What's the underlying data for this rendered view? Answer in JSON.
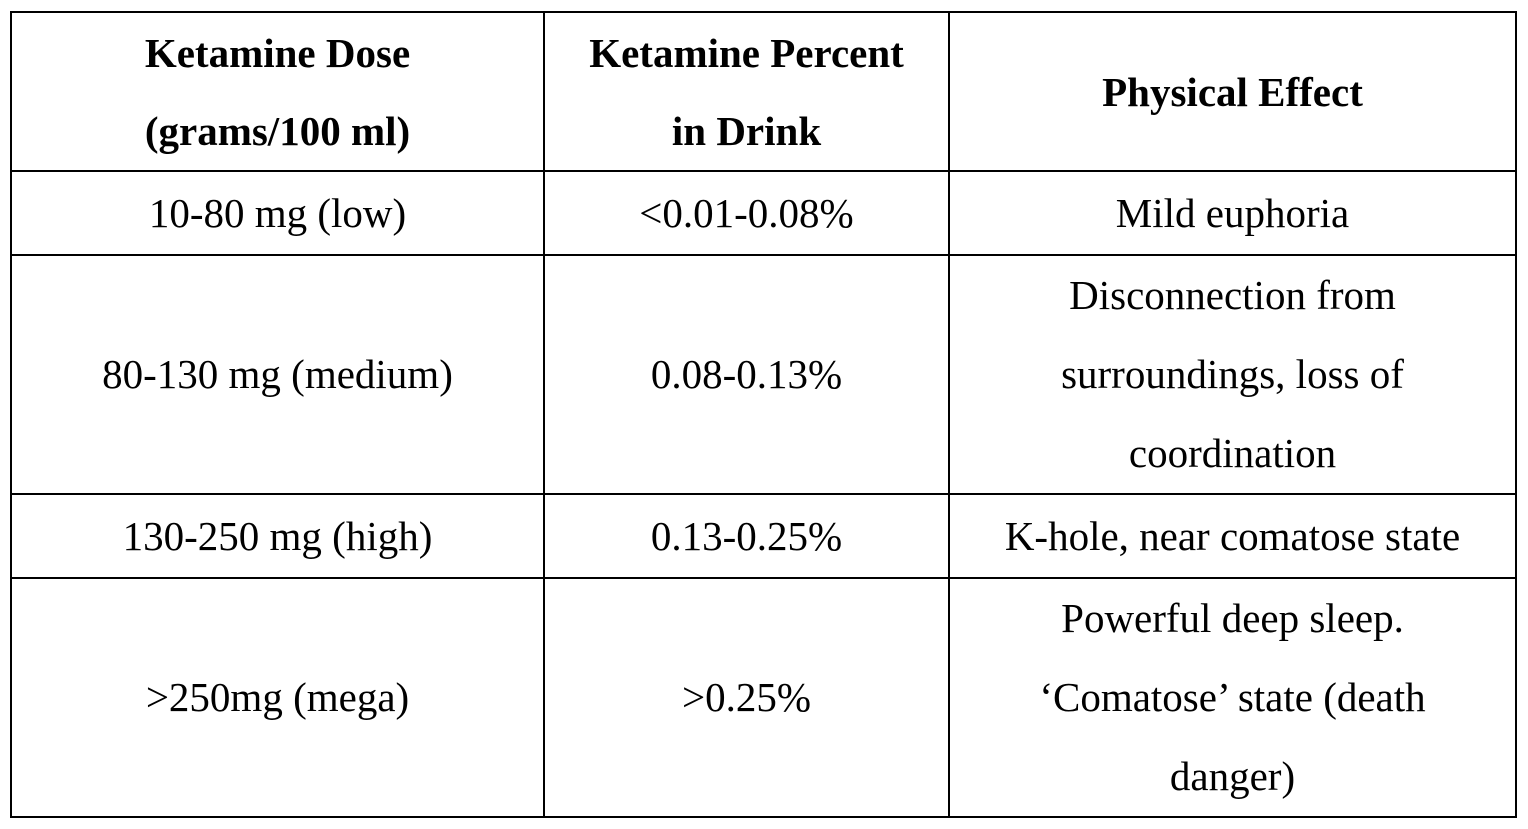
{
  "table": {
    "headers": [
      [
        "Ketamine Dose",
        "(grams/100 ml)"
      ],
      [
        "Ketamine Percent",
        "in Drink"
      ],
      [
        "Physical Effect"
      ]
    ],
    "rows": [
      {
        "dose": "10-80 mg (low)",
        "percent": "<0.01-0.08%",
        "effect": [
          "Mild euphoria"
        ]
      },
      {
        "dose": "80-130 mg (medium)",
        "percent": "0.08-0.13%",
        "effect": [
          "Disconnection from",
          "surroundings, loss of",
          "coordination"
        ]
      },
      {
        "dose": "130-250 mg (high)",
        "percent": "0.13-0.25%",
        "effect": [
          "K-hole, near comatose state"
        ]
      },
      {
        "dose": ">250mg (mega)",
        "percent": ">0.25%",
        "effect": [
          "Powerful deep sleep.",
          "‘Comatose’ state (death",
          "danger)"
        ]
      }
    ]
  }
}
